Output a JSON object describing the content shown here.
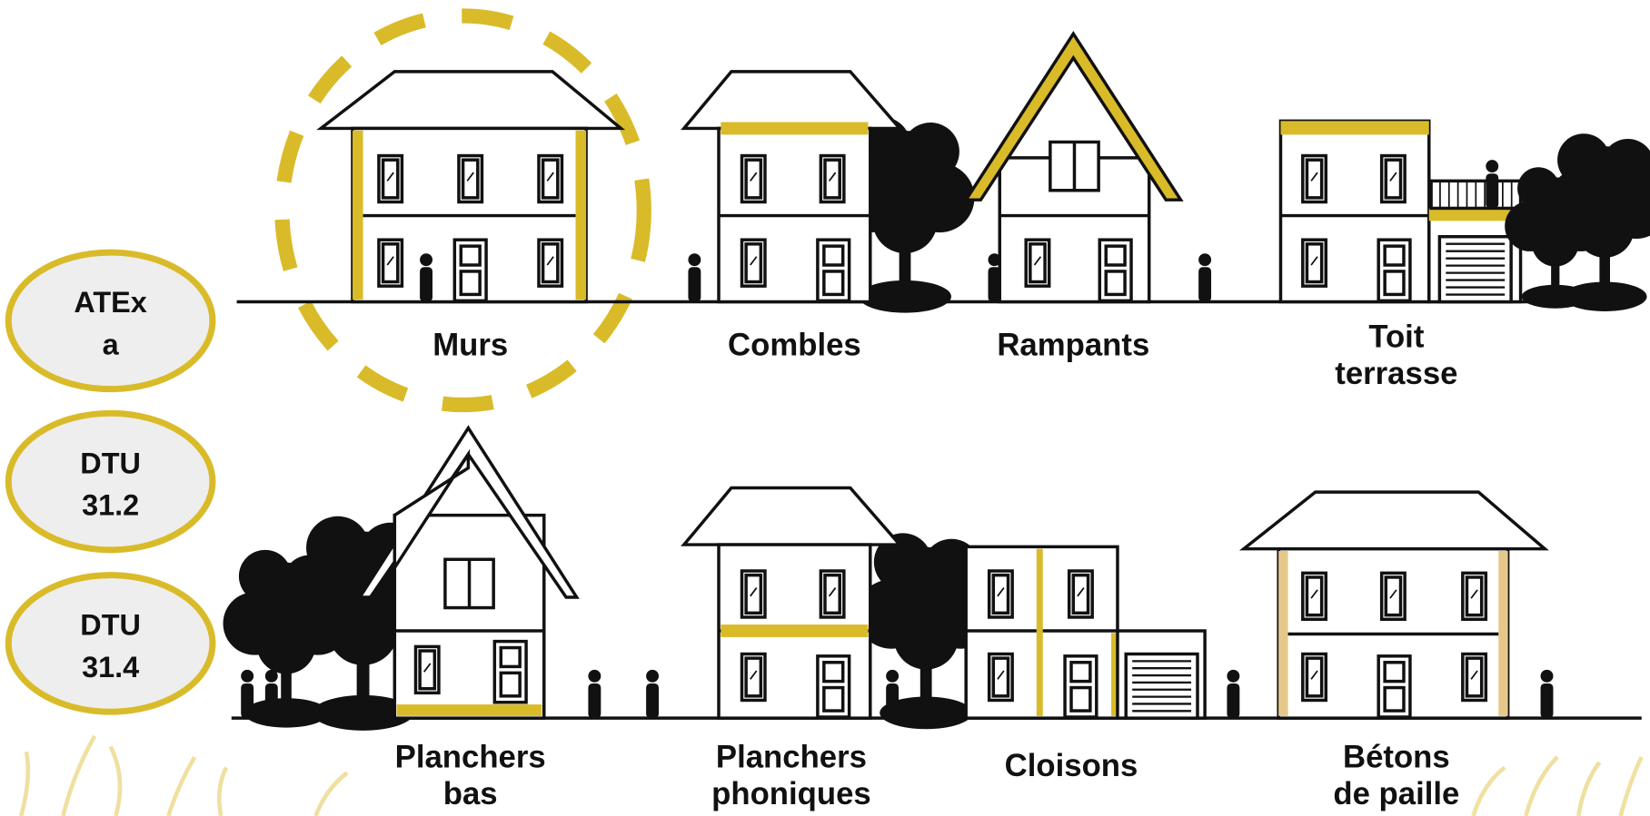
{
  "badges": [
    {
      "lines": [
        "ATEx",
        "a"
      ]
    },
    {
      "lines": [
        "DTU",
        "31.2"
      ]
    },
    {
      "lines": [
        "DTU",
        "31.4"
      ]
    }
  ],
  "houses": [
    {
      "label": [
        "Murs"
      ]
    },
    {
      "label": [
        "Combles"
      ]
    },
    {
      "label": [
        "Rampants"
      ]
    },
    {
      "label": [
        "Toit",
        "terrasse"
      ]
    },
    {
      "label": [
        "Planchers",
        "bas"
      ]
    },
    {
      "label": [
        "Planchers",
        "phoniques"
      ]
    },
    {
      "label": [
        "Cloisons"
      ]
    },
    {
      "label": [
        "Bétons",
        "de paille"
      ]
    }
  ]
}
